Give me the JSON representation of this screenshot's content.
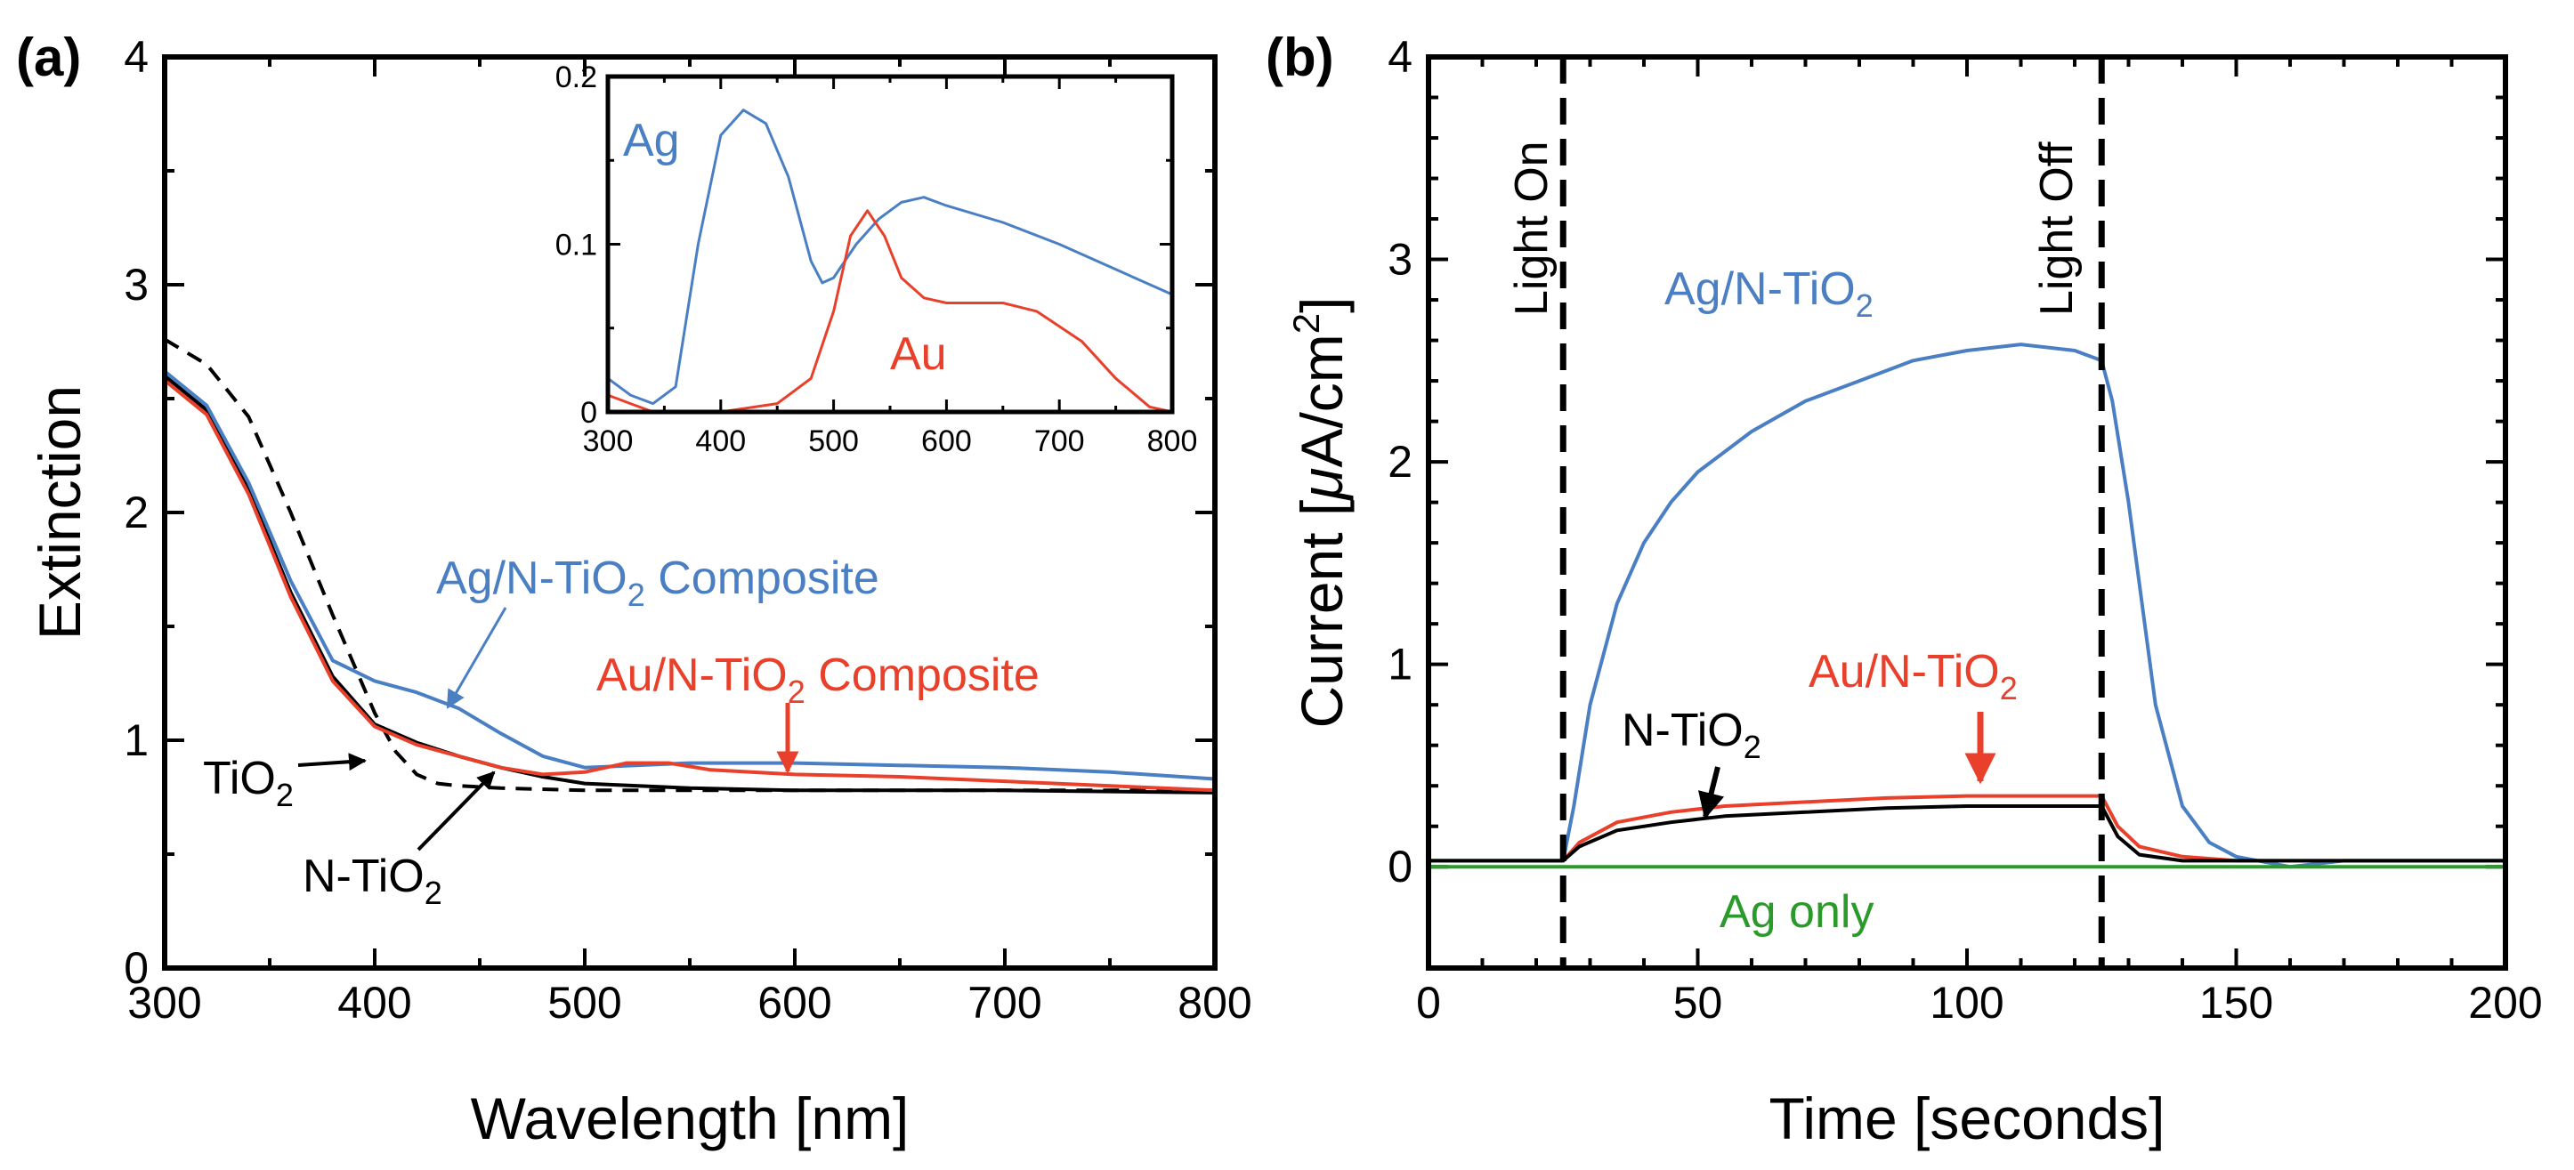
{
  "colors": {
    "ag": "#4a7fc4",
    "au": "#e8402a",
    "black": "#000000",
    "green": "#2a9a2a"
  },
  "panel_a": {
    "label": "(a)",
    "annotations": {
      "ag_composite_pre": "Ag/N-TiO",
      "ag_composite_sub": "2",
      "ag_composite_post": " Composite",
      "au_composite_pre": "Au/N-TiO",
      "au_composite_sub": "2",
      "au_composite_post": " Composite",
      "tio2_pre": "TiO",
      "tio2_sub": "2",
      "ntio2_pre": "N-TiO",
      "ntio2_sub": "2"
    },
    "inset_annotations": {
      "ag": "Ag",
      "au": "Au"
    }
  },
  "panel_b": {
    "label": "(b)",
    "annotations": {
      "light_on": "Light On",
      "light_off": "Light Off",
      "ag_pre": "Ag/N-TiO",
      "ag_sub": "2",
      "au_pre": "Au/N-TiO",
      "au_sub": "2",
      "ntio2_pre": "N-TiO",
      "ntio2_sub": "2",
      "ag_only": "Ag only"
    },
    "ylabel_pre": "Current [",
    "ylabel_mu": "μ",
    "ylabel_mid": "A/cm",
    "ylabel_sup": "2",
    "ylabel_post": "]"
  },
  "chart_data": [
    {
      "id": "a",
      "type": "line",
      "title": "",
      "xlabel": "Wavelength [nm]",
      "ylabel": "Extinction",
      "xlim": [
        300,
        800
      ],
      "ylim": [
        0,
        4
      ],
      "xticks": [
        300,
        400,
        500,
        600,
        700,
        800
      ],
      "yticks": [
        0,
        1,
        2,
        3,
        4
      ],
      "series": [
        {
          "name": "TiO2",
          "color": "#000000",
          "dash": true,
          "x": [
            300,
            320,
            340,
            360,
            380,
            400,
            410,
            420,
            430,
            440,
            460,
            500,
            600,
            700,
            800
          ],
          "y": [
            2.76,
            2.65,
            2.42,
            2.0,
            1.55,
            1.12,
            0.95,
            0.85,
            0.81,
            0.8,
            0.79,
            0.78,
            0.78,
            0.78,
            0.78
          ]
        },
        {
          "name": "N-TiO2",
          "color": "#000000",
          "dash": false,
          "x": [
            300,
            320,
            340,
            360,
            380,
            400,
            420,
            440,
            460,
            480,
            500,
            550,
            600,
            700,
            800
          ],
          "y": [
            2.6,
            2.45,
            2.1,
            1.65,
            1.28,
            1.07,
            0.99,
            0.93,
            0.88,
            0.84,
            0.81,
            0.79,
            0.78,
            0.78,
            0.77
          ]
        },
        {
          "name": "Ag/N-TiO2 Composite",
          "color": "#4a7fc4",
          "dash": false,
          "x": [
            300,
            320,
            340,
            360,
            380,
            400,
            420,
            440,
            460,
            480,
            500,
            550,
            600,
            650,
            700,
            750,
            800
          ],
          "y": [
            2.62,
            2.47,
            2.13,
            1.7,
            1.35,
            1.26,
            1.21,
            1.14,
            1.03,
            0.93,
            0.88,
            0.9,
            0.9,
            0.89,
            0.88,
            0.86,
            0.83
          ]
        },
        {
          "name": "Au/N-TiO2 Composite",
          "color": "#e8402a",
          "dash": false,
          "x": [
            300,
            320,
            340,
            360,
            380,
            400,
            420,
            440,
            460,
            480,
            500,
            520,
            540,
            560,
            600,
            650,
            700,
            750,
            800
          ],
          "y": [
            2.58,
            2.43,
            2.08,
            1.63,
            1.26,
            1.06,
            0.98,
            0.93,
            0.88,
            0.85,
            0.86,
            0.9,
            0.9,
            0.87,
            0.85,
            0.84,
            0.82,
            0.8,
            0.78
          ]
        }
      ]
    },
    {
      "id": "a-inset",
      "type": "line",
      "title": "",
      "xlabel": "",
      "ylabel": "",
      "xlim": [
        300,
        800
      ],
      "ylim": [
        0,
        0.2
      ],
      "xticks": [
        300,
        400,
        500,
        600,
        700,
        800
      ],
      "yticks": [
        0,
        0.1,
        0.2
      ],
      "ytick_labels": [
        "0",
        "0.1",
        "0.2"
      ],
      "series": [
        {
          "name": "Ag",
          "color": "#4a7fc4",
          "x": [
            300,
            320,
            340,
            360,
            380,
            400,
            420,
            440,
            460,
            480,
            490,
            500,
            520,
            540,
            560,
            580,
            600,
            650,
            700,
            750,
            800
          ],
          "y": [
            0.02,
            0.01,
            0.005,
            0.015,
            0.1,
            0.165,
            0.18,
            0.172,
            0.14,
            0.09,
            0.077,
            0.08,
            0.1,
            0.115,
            0.125,
            0.128,
            0.123,
            0.113,
            0.1,
            0.085,
            0.07
          ]
        },
        {
          "name": "Au",
          "color": "#e8402a",
          "x": [
            300,
            320,
            340,
            360,
            400,
            450,
            480,
            500,
            515,
            530,
            545,
            560,
            580,
            600,
            650,
            680,
            720,
            750,
            780,
            800
          ],
          "y": [
            0.01,
            0.005,
            0.0,
            0.0,
            0.0,
            0.005,
            0.02,
            0.06,
            0.105,
            0.12,
            0.105,
            0.08,
            0.068,
            0.065,
            0.065,
            0.06,
            0.042,
            0.02,
            0.003,
            0.0
          ]
        }
      ]
    },
    {
      "id": "b",
      "type": "line",
      "title": "",
      "xlabel": "Time [seconds]",
      "ylabel": "Current [μA/cm2]",
      "xlim": [
        0,
        200
      ],
      "ylim": [
        -0.5,
        4
      ],
      "xticks": [
        0,
        50,
        100,
        150,
        200
      ],
      "yticks": [
        0,
        1,
        2,
        3,
        4
      ],
      "light_on_x": 25,
      "light_off_x": 125,
      "series": [
        {
          "name": "Ag/N-TiO2",
          "color": "#4a7fc4",
          "x": [
            0,
            25,
            27,
            30,
            35,
            40,
            45,
            50,
            60,
            70,
            80,
            90,
            100,
            110,
            120,
            125,
            127,
            130,
            135,
            140,
            145,
            150,
            160,
            170,
            180,
            190,
            200
          ],
          "y": [
            0.03,
            0.03,
            0.3,
            0.8,
            1.3,
            1.6,
            1.8,
            1.95,
            2.15,
            2.3,
            2.4,
            2.5,
            2.55,
            2.58,
            2.55,
            2.5,
            2.3,
            1.8,
            0.8,
            0.3,
            0.12,
            0.05,
            0.0,
            0.03,
            0.03,
            0.03,
            0.03
          ]
        },
        {
          "name": "Au/N-TiO2",
          "color": "#e8402a",
          "x": [
            0,
            25,
            28,
            35,
            45,
            55,
            70,
            85,
            100,
            110,
            120,
            125,
            128,
            132,
            140,
            150,
            200
          ],
          "y": [
            0.03,
            0.03,
            0.12,
            0.22,
            0.27,
            0.3,
            0.32,
            0.34,
            0.35,
            0.35,
            0.35,
            0.35,
            0.2,
            0.1,
            0.05,
            0.03,
            0.03
          ]
        },
        {
          "name": "N-TiO2",
          "color": "#000000",
          "x": [
            0,
            25,
            28,
            35,
            45,
            55,
            70,
            85,
            100,
            110,
            120,
            125,
            128,
            132,
            140,
            150,
            200
          ],
          "y": [
            0.03,
            0.03,
            0.1,
            0.18,
            0.22,
            0.25,
            0.27,
            0.29,
            0.3,
            0.3,
            0.3,
            0.3,
            0.15,
            0.06,
            0.03,
            0.03,
            0.03
          ]
        },
        {
          "name": "Ag only",
          "color": "#2a9a2a",
          "x": [
            0,
            50,
            100,
            150,
            200
          ],
          "y": [
            0.0,
            0.0,
            0.0,
            0.0,
            0.0
          ]
        }
      ]
    }
  ]
}
